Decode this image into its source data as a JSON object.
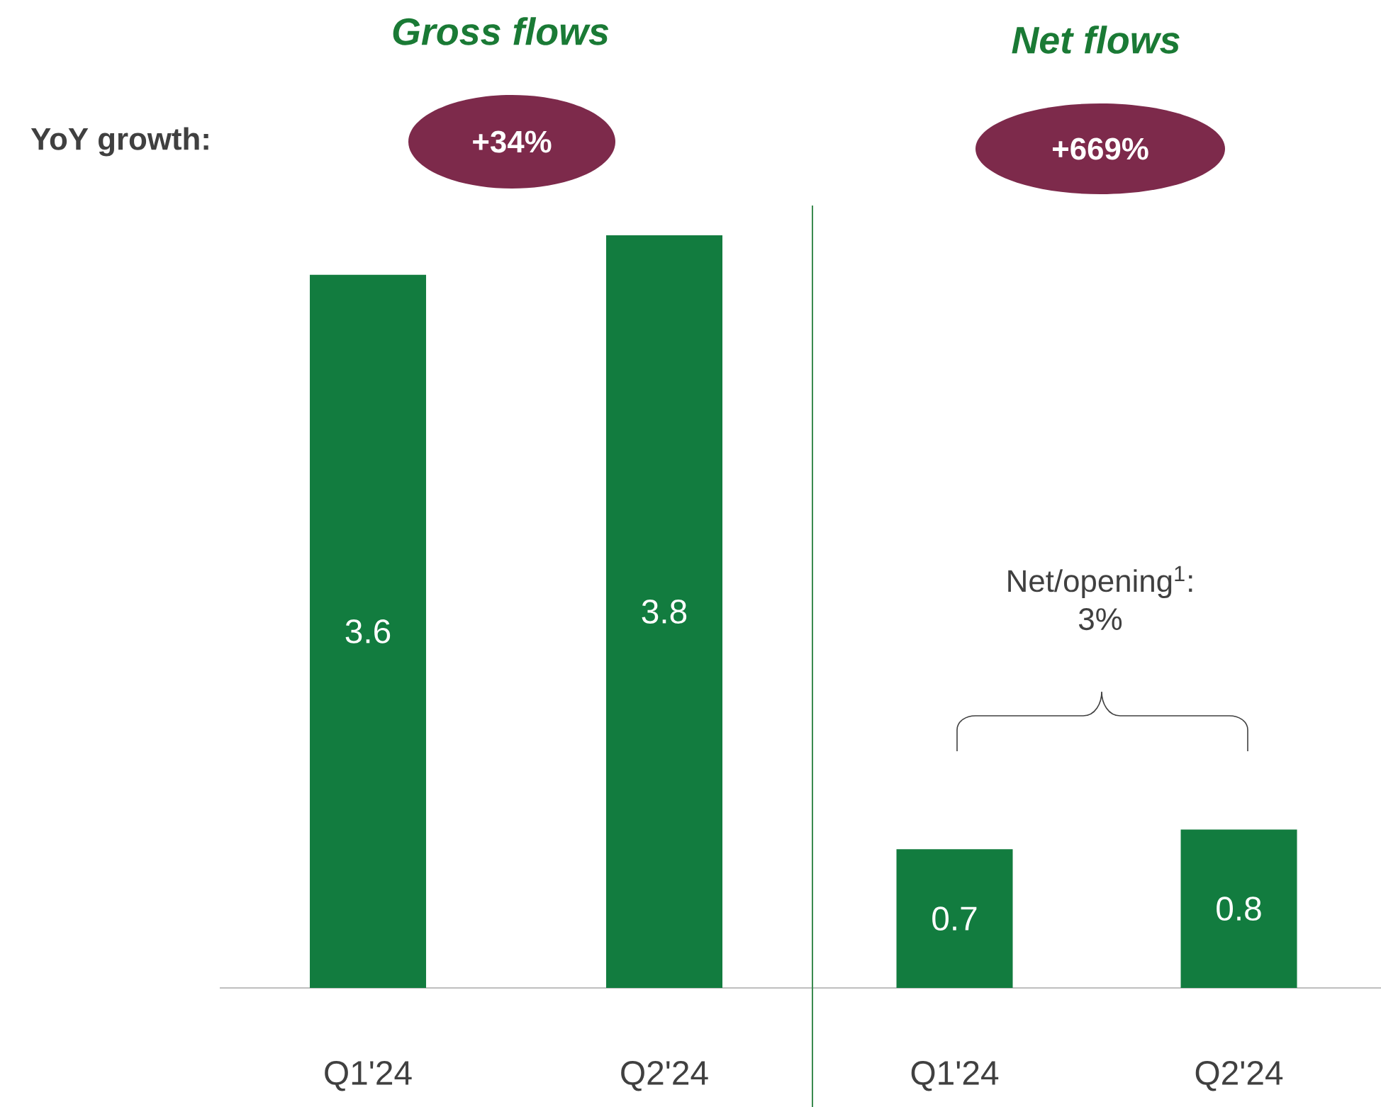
{
  "chart_data": [
    {
      "type": "bar",
      "title": "Gross flows",
      "categories": [
        "Q1'24",
        "Q2'24"
      ],
      "values": [
        3.6,
        3.8
      ],
      "color": "#127c3f",
      "data_labels": true,
      "tick_labels": "x",
      "annotations": [
        "YoY growth:",
        "+34%"
      ]
    },
    {
      "type": "bar",
      "title": "Net flows",
      "categories": [
        "Q1'24",
        "Q2'24"
      ],
      "values": [
        0.7,
        0.8
      ],
      "color": "#127c3f",
      "data_labels": true,
      "tick_labels": "x",
      "annotations": [
        "+669%",
        "Net/opening$^{1}$: 3%"
      ]
    }
  ]
}
